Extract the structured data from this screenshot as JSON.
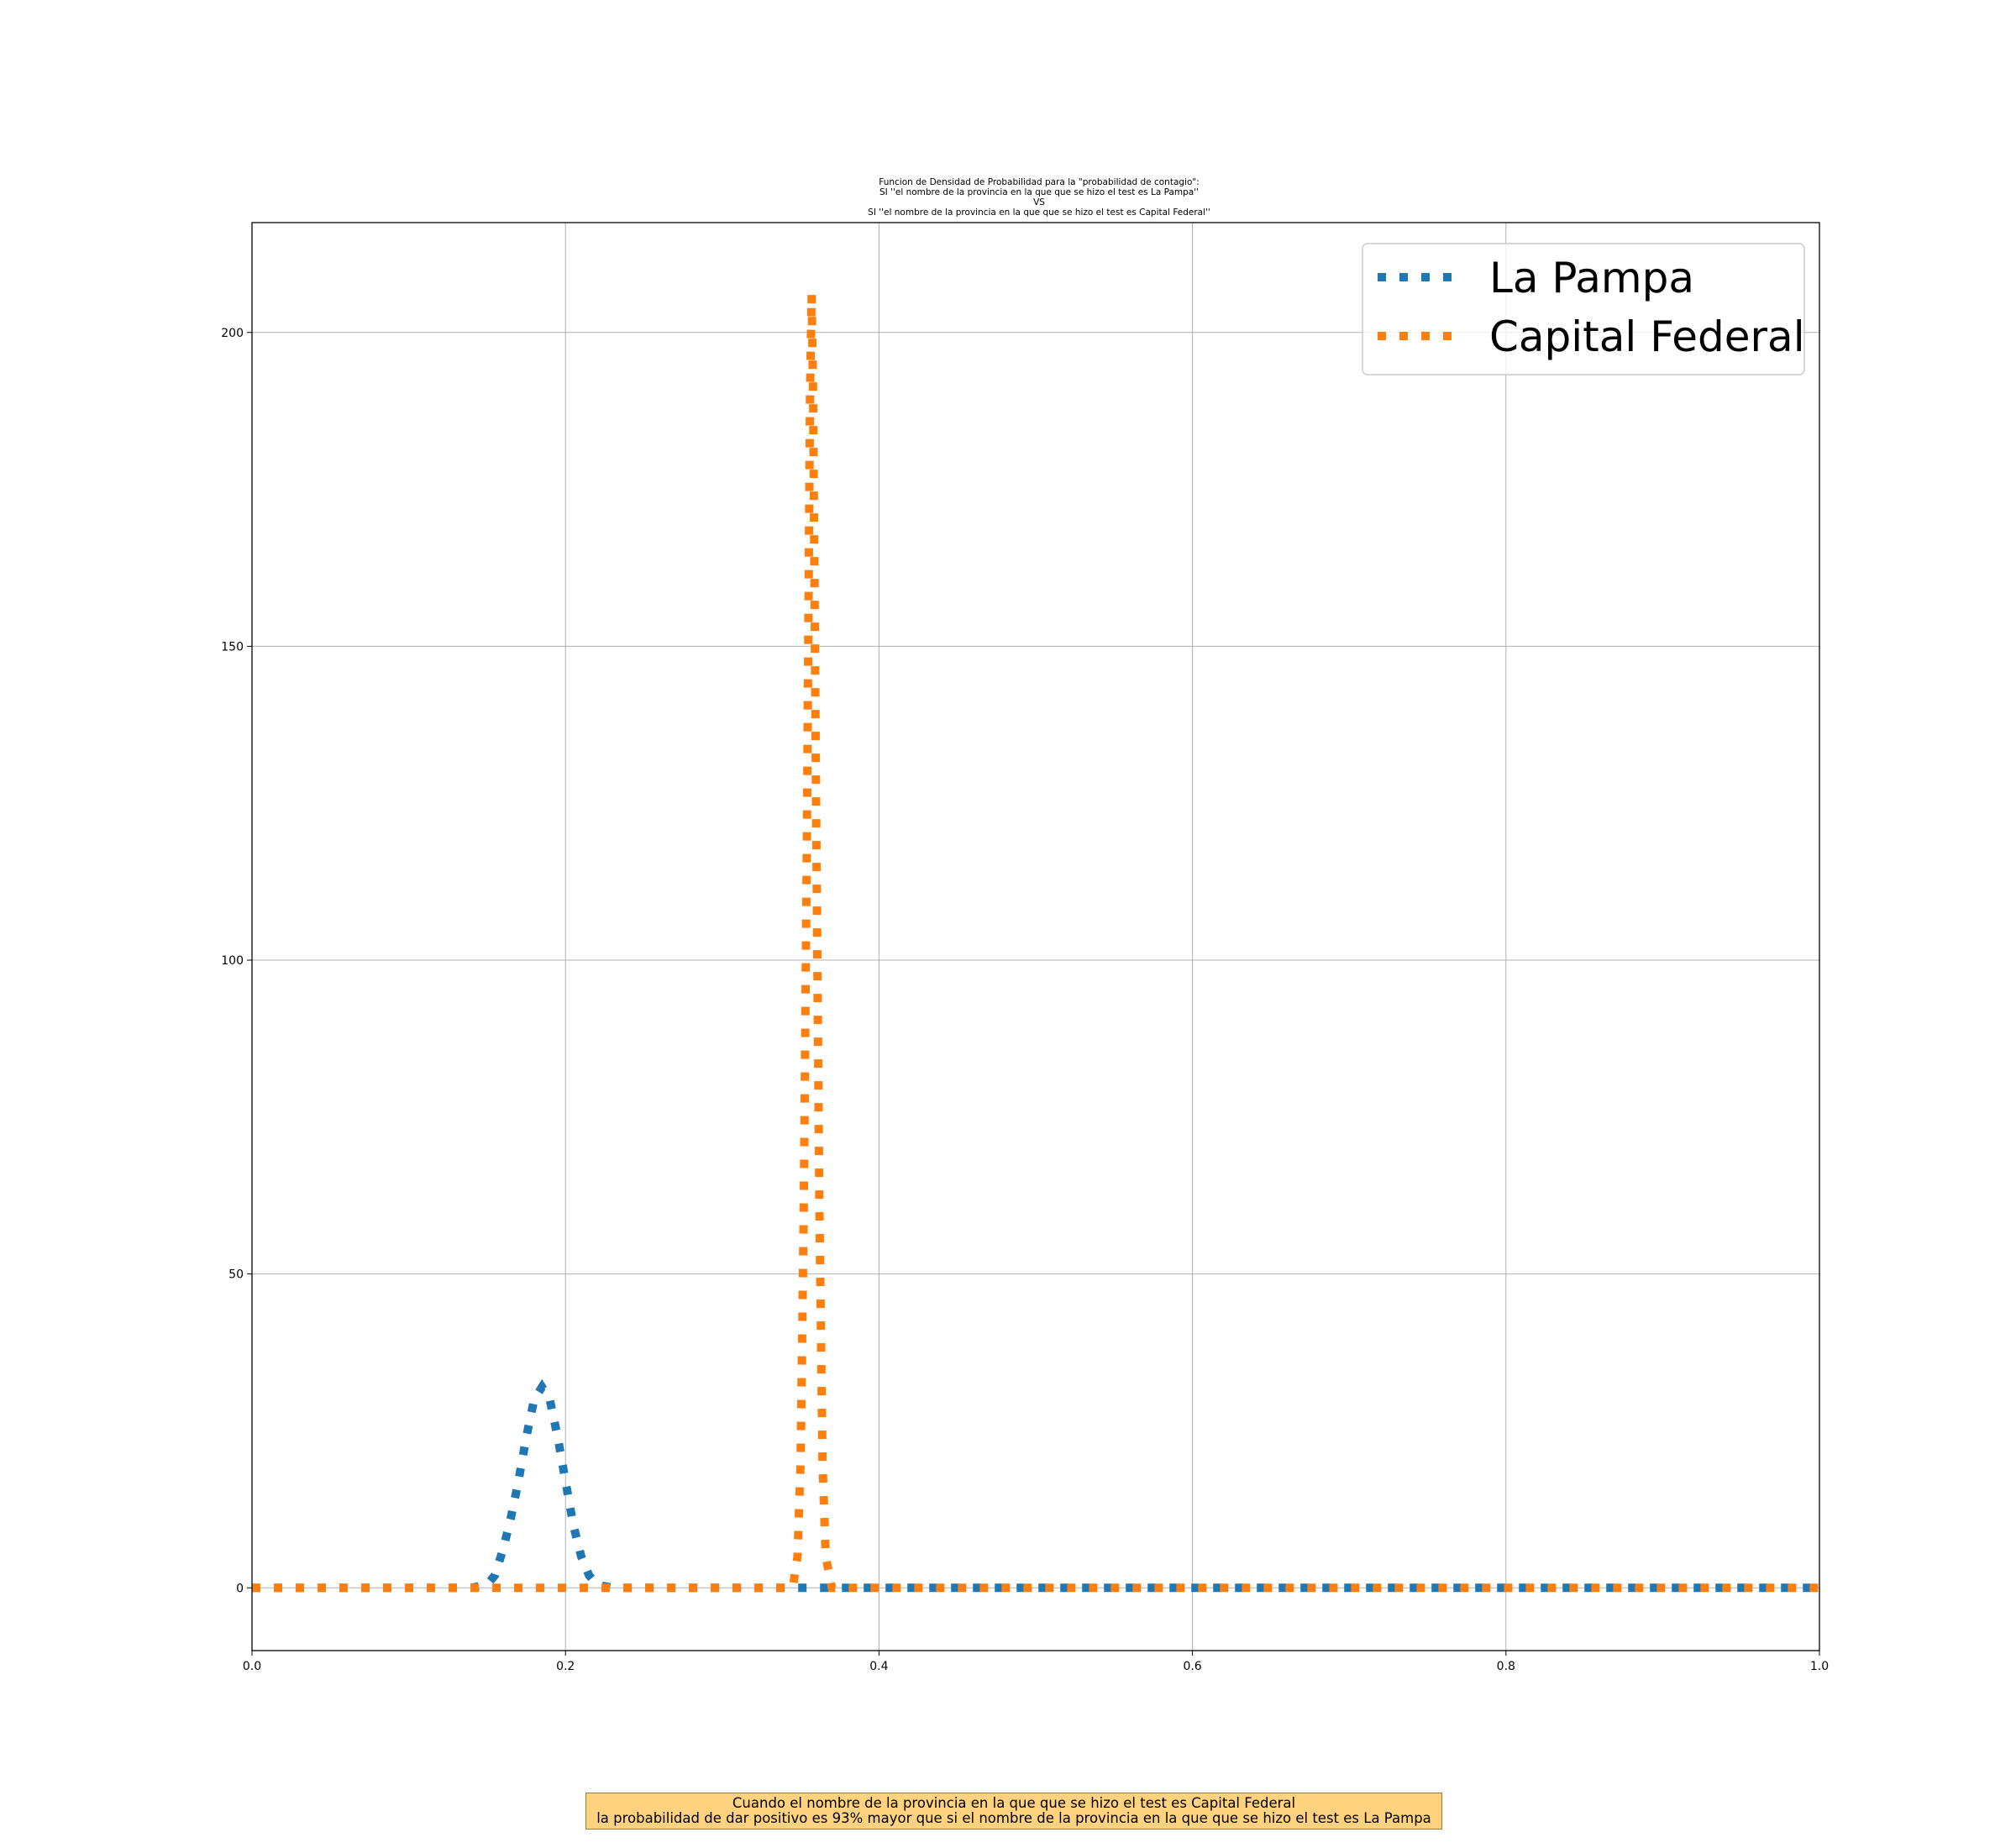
{
  "chart_data": {
    "type": "line",
    "title_lines": [
      "Funcion de Densidad de Probabilidad para la \"probabilidad de contagio\":",
      "SI ''el nombre de la provincia en la que que se hizo el test es La Pampa''",
      "VS",
      "SI ''el nombre de la provincia en la que que se hizo el test es Capital Federal''"
    ],
    "xlabel": "",
    "ylabel": "",
    "xlim": [
      0.0,
      1.0
    ],
    "ylim": [
      -10,
      217.5
    ],
    "xticks": [
      "0.0",
      "0.2",
      "0.4",
      "0.6",
      "0.8",
      "1.0"
    ],
    "yticks": [
      "0",
      "50",
      "100",
      "150",
      "200"
    ],
    "grid": true,
    "legend_position": "top-right",
    "series": [
      {
        "name": "La Pampa",
        "color": "#1f77b4",
        "linestyle": "dotted",
        "points": [
          [
            0.0,
            0
          ],
          [
            0.14,
            0
          ],
          [
            0.15,
            0.5
          ],
          [
            0.155,
            2
          ],
          [
            0.16,
            6
          ],
          [
            0.165,
            11
          ],
          [
            0.17,
            17
          ],
          [
            0.175,
            24
          ],
          [
            0.18,
            30
          ],
          [
            0.185,
            32
          ],
          [
            0.19,
            30
          ],
          [
            0.195,
            24
          ],
          [
            0.2,
            17
          ],
          [
            0.205,
            10
          ],
          [
            0.21,
            5
          ],
          [
            0.215,
            2
          ],
          [
            0.22,
            0.5
          ],
          [
            0.23,
            0
          ],
          [
            1.0,
            0
          ]
        ]
      },
      {
        "name": "Capital Federal",
        "color": "#ff7f0e",
        "linestyle": "dotted",
        "points": [
          [
            0.0,
            0
          ],
          [
            0.345,
            0
          ],
          [
            0.348,
            5
          ],
          [
            0.35,
            20
          ],
          [
            0.352,
            60
          ],
          [
            0.354,
            120
          ],
          [
            0.356,
            190
          ],
          [
            0.357,
            206
          ],
          [
            0.358,
            190
          ],
          [
            0.36,
            120
          ],
          [
            0.362,
            60
          ],
          [
            0.364,
            20
          ],
          [
            0.366,
            5
          ],
          [
            0.37,
            0
          ],
          [
            1.0,
            0
          ]
        ]
      }
    ]
  },
  "annotation": {
    "line1": "Cuando el nombre de la provincia en la que que se hizo el test es Capital Federal",
    "line2": "la probabilidad de dar positivo es 93% mayor que si el nombre de la provincia en la que que se hizo el test es La Pampa"
  }
}
